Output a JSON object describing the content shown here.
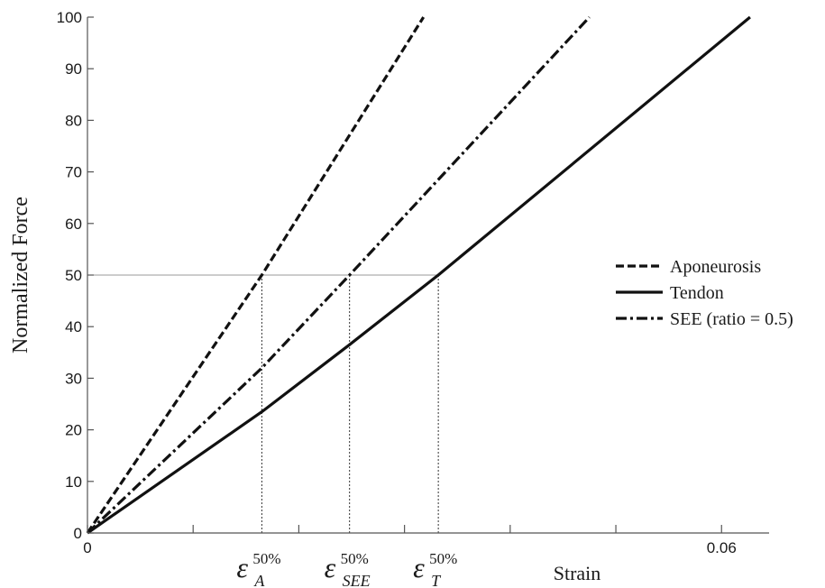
{
  "chart_data": {
    "type": "line",
    "xlabel": "Strain",
    "ylabel": "Normalized Force",
    "xlim": [
      0,
      0.0645
    ],
    "ylim": [
      0,
      100
    ],
    "x_minor_ticks": [
      0,
      0.01,
      0.02,
      0.03,
      0.04,
      0.05,
      0.06
    ],
    "x_tick_labels": [
      {
        "value": 0,
        "label": "0"
      },
      {
        "value": 0.06,
        "label": "0.06"
      }
    ],
    "y_ticks": [
      0,
      10,
      20,
      30,
      40,
      50,
      60,
      70,
      80,
      90,
      100
    ],
    "reference_line": {
      "y": 50
    },
    "series": [
      {
        "name": "Aponeurosis",
        "style": "dashed",
        "x": [
          0,
          0.0165,
          0.0318
        ],
        "y": [
          0,
          50,
          100
        ]
      },
      {
        "name": "Tendon",
        "style": "solid",
        "x": [
          0,
          0.0165,
          0.0248,
          0.0332,
          0.0627
        ],
        "y": [
          0,
          23.5,
          36.5,
          50,
          100
        ]
      },
      {
        "name": "SEE (ratio = 0.5)",
        "style": "dashdot",
        "x": [
          0,
          0.0165,
          0.0248,
          0.0475
        ],
        "y": [
          0,
          32,
          50,
          100
        ]
      }
    ],
    "strain_markers": [
      {
        "x": 0.0165,
        "y": 50,
        "symbol": "ε",
        "subscript": "A",
        "superscript": "50%"
      },
      {
        "x": 0.0248,
        "y": 50,
        "symbol": "ε",
        "subscript": "SEE",
        "superscript": "50%"
      },
      {
        "x": 0.0332,
        "y": 50,
        "symbol": "ε",
        "subscript": "T",
        "superscript": "50%"
      }
    ],
    "legend": {
      "position": "right-middle"
    },
    "grid": false
  }
}
